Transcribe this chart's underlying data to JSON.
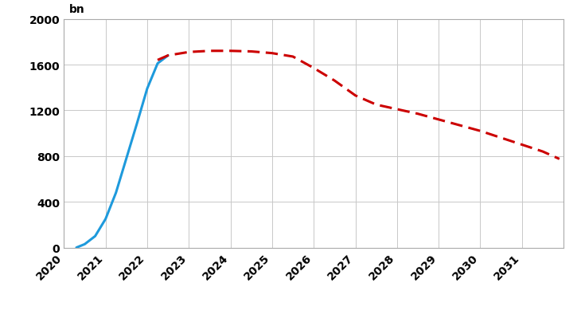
{
  "pepp_x": [
    2020.3,
    2020.5,
    2020.75,
    2021.0,
    2021.25,
    2021.5,
    2021.75,
    2022.0,
    2022.25,
    2022.5
  ],
  "pepp_y": [
    0,
    30,
    100,
    250,
    480,
    780,
    1080,
    1390,
    1610,
    1680
  ],
  "sma_x": [
    2022.25,
    2022.5,
    2023.0,
    2023.5,
    2024.0,
    2024.5,
    2025.0,
    2025.5,
    2026.0,
    2026.5,
    2027.0,
    2027.5,
    2028.0,
    2028.5,
    2029.0,
    2029.5,
    2030.0,
    2030.5,
    2031.0,
    2031.5,
    2031.9
  ],
  "sma_y": [
    1640,
    1680,
    1710,
    1720,
    1720,
    1715,
    1700,
    1670,
    1570,
    1460,
    1330,
    1250,
    1210,
    1170,
    1120,
    1070,
    1020,
    960,
    900,
    840,
    775
  ],
  "pepp_color": "#1e9adc",
  "sma_color": "#cc0000",
  "background_color": "#ffffff",
  "grid_color": "#c8c8c8",
  "ylim": [
    0,
    2000
  ],
  "yticks": [
    0,
    400,
    800,
    1200,
    1600,
    2000
  ],
  "xlim": [
    2020.0,
    2032.0
  ],
  "xticks": [
    2020,
    2021,
    2022,
    2023,
    2024,
    2025,
    2026,
    2027,
    2028,
    2029,
    2030,
    2031
  ],
  "pepp_linewidth": 2.2,
  "sma_linewidth": 2.2,
  "tick_fontsize": 10,
  "label_fontsize": 10,
  "legend_fontsize": 10
}
